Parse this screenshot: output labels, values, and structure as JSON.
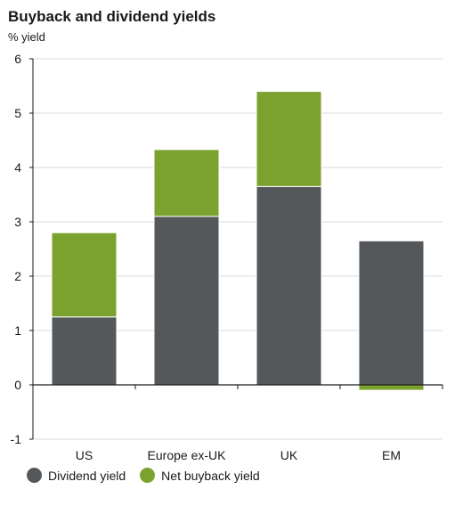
{
  "chart_data": {
    "type": "bar",
    "stacked": true,
    "title": "Buyback and dividend yields",
    "ylabel": "% yield",
    "xlabel": "",
    "categories": [
      "US",
      "Europe ex-UK",
      "UK",
      "EM"
    ],
    "ylim": [
      -1,
      6
    ],
    "yticks": [
      "6",
      "5",
      "4",
      "3",
      "2",
      "1",
      "0",
      "-1"
    ],
    "grid": true,
    "legend_position": "bottom-left",
    "series": [
      {
        "name": "Dividend yield",
        "color": "#54585a",
        "values": [
          1.25,
          3.1,
          3.65,
          2.65
        ]
      },
      {
        "name": "Net buyback yield",
        "color": "#7ba12f",
        "values": [
          1.55,
          1.23,
          1.75,
          -0.1
        ]
      }
    ]
  }
}
